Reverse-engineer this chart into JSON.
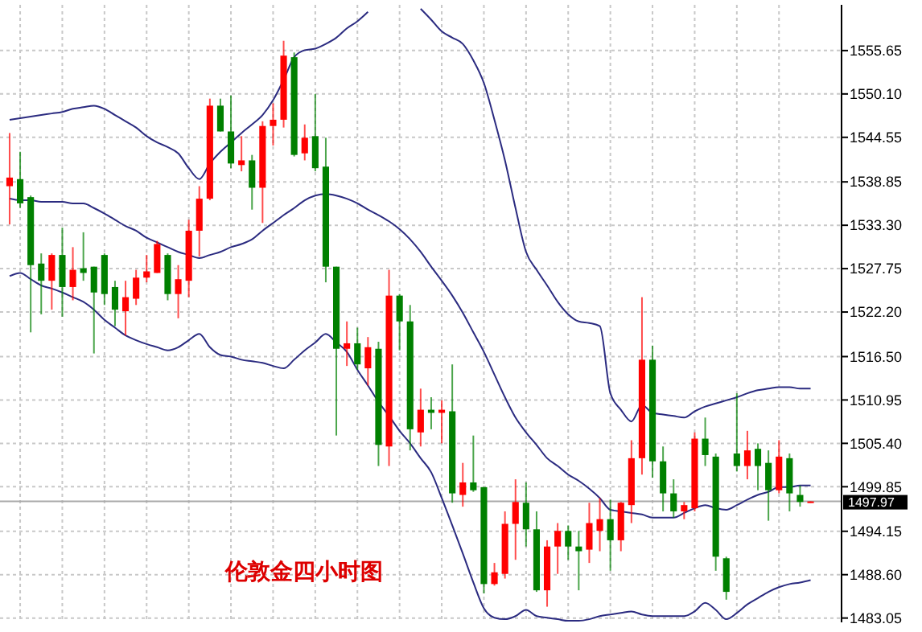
{
  "chart_data": {
    "type": "candlestick",
    "title": "伦敦金四小时图",
    "categories": [
      null,
      null,
      null,
      null,
      null,
      null,
      null,
      null,
      null,
      null,
      null,
      null,
      null,
      null,
      null,
      null,
      null,
      null,
      null,
      null,
      null,
      null,
      null,
      null,
      null,
      null,
      null,
      null,
      null,
      null,
      null,
      null,
      null,
      null,
      null,
      null,
      null,
      null,
      null,
      null,
      null,
      null,
      null,
      null,
      null,
      null,
      null,
      null,
      null,
      null,
      null,
      null,
      null,
      null,
      null,
      null,
      null,
      null,
      null,
      null,
      null,
      null,
      null,
      null,
      null,
      null,
      null,
      null,
      null,
      null,
      null,
      null,
      null,
      null,
      null,
      null,
      null
    ],
    "ohlc": [
      [
        1538.3,
        1545.1,
        1533.4,
        1539.4
      ],
      [
        1539.2,
        1542.7,
        1535.5,
        1536.1
      ],
      [
        1536.9,
        1537.1,
        1519.6,
        1528.2
      ],
      [
        1528.4,
        1529.7,
        1521.9,
        1526.2
      ],
      [
        1526.2,
        1529.7,
        1522.5,
        1529.5
      ],
      [
        1529.5,
        1533.0,
        1521.6,
        1525.4
      ],
      [
        1525.4,
        1530.5,
        1523.7,
        1527.6
      ],
      [
        1527.8,
        1532.4,
        1526.2,
        1527.2
      ],
      [
        1528.0,
        1528.0,
        1516.9,
        1524.7
      ],
      [
        1529.5,
        1529.7,
        1523.1,
        1524.5
      ],
      [
        1525.4,
        1526.2,
        1520.4,
        1522.5
      ],
      [
        1522.3,
        1526.2,
        1519.2,
        1524.1
      ],
      [
        1523.9,
        1527.6,
        1523.1,
        1526.6
      ],
      [
        1526.6,
        1529.5,
        1526.0,
        1527.4
      ],
      [
        1527.2,
        1531.3,
        1527.2,
        1530.9
      ],
      [
        1529.5,
        1529.7,
        1523.7,
        1524.5
      ],
      [
        1524.5,
        1528.2,
        1521.4,
        1526.4
      ],
      [
        1526.2,
        1534.0,
        1524.1,
        1532.6
      ],
      [
        1532.6,
        1538.3,
        1529.3,
        1536.7
      ],
      [
        1536.7,
        1549.5,
        1536.5,
        1548.6
      ],
      [
        1548.6,
        1549.5,
        1545.3,
        1545.3
      ],
      [
        1545.3,
        1549.9,
        1540.6,
        1541.2
      ],
      [
        1541.0,
        1544.7,
        1540.2,
        1541.6
      ],
      [
        1541.6,
        1542.3,
        1535.3,
        1538.1
      ],
      [
        1538.1,
        1546.6,
        1533.6,
        1546.0
      ],
      [
        1546.0,
        1548.9,
        1543.5,
        1546.8
      ],
      [
        1546.8,
        1556.9,
        1545.8,
        1555.0
      ],
      [
        1554.8,
        1555.4,
        1542.1,
        1542.3
      ],
      [
        1542.5,
        1546.2,
        1541.6,
        1544.5
      ],
      [
        1544.7,
        1550.1,
        1540.2,
        1540.6
      ],
      [
        1540.8,
        1544.5,
        1526.0,
        1528.0
      ],
      [
        1528.0,
        1528.0,
        1506.4,
        1517.5
      ],
      [
        1517.5,
        1521.0,
        1515.3,
        1518.2
      ],
      [
        1518.2,
        1520.2,
        1514.8,
        1515.5
      ],
      [
        1515.0,
        1519.0,
        1512.8,
        1517.7
      ],
      [
        1517.5,
        1518.4,
        1502.5,
        1505.2
      ],
      [
        1505.0,
        1527.6,
        1502.5,
        1524.3
      ],
      [
        1524.3,
        1524.5,
        1517.3,
        1521.0
      ],
      [
        1521.0,
        1523.1,
        1504.5,
        1507.2
      ],
      [
        1506.8,
        1512.4,
        1505.0,
        1509.7
      ],
      [
        1509.7,
        1511.3,
        1507.2,
        1509.3
      ],
      [
        1509.3,
        1510.9,
        1505.4,
        1509.7
      ],
      [
        1509.5,
        1515.5,
        1497.8,
        1499.0
      ],
      [
        1498.8,
        1502.9,
        1497.3,
        1500.4
      ],
      [
        1500.4,
        1506.4,
        1499.2,
        1499.4
      ],
      [
        1499.8,
        1499.8,
        1486.2,
        1487.4
      ],
      [
        1487.4,
        1490.1,
        1487.2,
        1488.9
      ],
      [
        1488.7,
        1496.7,
        1488.1,
        1495.1
      ],
      [
        1495.1,
        1500.8,
        1490.5,
        1497.9
      ],
      [
        1497.8,
        1500.4,
        1492.2,
        1494.4
      ],
      [
        1494.4,
        1496.7,
        1486.4,
        1486.6
      ],
      [
        1486.6,
        1493.0,
        1484.5,
        1492.2
      ],
      [
        1492.2,
        1495.2,
        1488.7,
        1494.2
      ],
      [
        1494.2,
        1494.9,
        1490.5,
        1492.2
      ],
      [
        1492.2,
        1494.2,
        1486.6,
        1491.6
      ],
      [
        1491.8,
        1497.8,
        1490.1,
        1495.2
      ],
      [
        1494.2,
        1498.4,
        1491.6,
        1495.7
      ],
      [
        1495.7,
        1498.2,
        1489.1,
        1493.0
      ],
      [
        1493.0,
        1497.9,
        1491.6,
        1497.8
      ],
      [
        1497.5,
        1505.8,
        1495.2,
        1503.5
      ],
      [
        1503.5,
        1524.1,
        1501.4,
        1516.1
      ],
      [
        1516.1,
        1517.9,
        1501.0,
        1503.1
      ],
      [
        1503.1,
        1505.0,
        1496.7,
        1499.0
      ],
      [
        1499.0,
        1500.8,
        1495.9,
        1496.7
      ],
      [
        1496.7,
        1497.9,
        1495.7,
        1497.5
      ],
      [
        1497.1,
        1506.8,
        1496.7,
        1506.0
      ],
      [
        1506.0,
        1508.7,
        1502.5,
        1503.9
      ],
      [
        1503.7,
        1504.1,
        1489.1,
        1490.9
      ],
      [
        1490.7,
        1490.9,
        1485.4,
        1486.4
      ],
      [
        1504.1,
        1511.8,
        1501.8,
        1502.5
      ],
      [
        1502.5,
        1507.0,
        1500.8,
        1504.5
      ],
      [
        1504.7,
        1505.4,
        1499.4,
        1502.5
      ],
      [
        1502.9,
        1504.5,
        1495.5,
        1499.4
      ],
      [
        1499.4,
        1505.8,
        1499.0,
        1503.7
      ],
      [
        1503.5,
        1504.1,
        1496.7,
        1499.0
      ],
      [
        1498.8,
        1500.0,
        1497.3,
        1497.9
      ],
      [
        1497.8,
        1497.97,
        1497.8,
        1497.97
      ]
    ],
    "series": [
      {
        "type": "line",
        "color": "#2b2b80",
        "values": [
          1546.8,
          1547.0,
          1547.2,
          1547.4,
          1547.6,
          1547.8,
          1548.2,
          1548.4,
          1548.6,
          1548.2,
          1547.4,
          1546.6,
          1545.8,
          1544.7,
          1543.9,
          1543.3,
          1542.5,
          1540.6,
          1539.2,
          1541.2,
          1542.7,
          1543.9,
          1545.1,
          1546.2,
          1547.4,
          1549.3,
          1551.9,
          1554.8,
          1555.7,
          1555.9,
          1556.5,
          1557.3,
          1558.5,
          1559.4,
          1560.6,
          null,
          null,
          null,
          null,
          1561.0,
          1559.6,
          1558.1,
          1557.3,
          1556.5,
          1554.4,
          1551.5,
          1546.8,
          1541.6,
          1535.5,
          1529.9,
          1527.6,
          1525.6,
          1523.5,
          1521.9,
          1521.0,
          1520.8,
          1520.4,
          1511.8,
          1509.7,
          1508.2,
          1510.3,
          1509.3,
          1509.1,
          1508.9,
          1508.7,
          1509.5,
          1510.1,
          1510.5,
          1510.9,
          1511.3,
          1511.8,
          1512.2,
          1512.4,
          1512.6,
          1512.6,
          1512.4,
          1512.4
        ]
      },
      {
        "type": "line",
        "color": "#2b2b80",
        "values": [
          1536.7,
          1536.5,
          1536.5,
          1536.3,
          1536.3,
          1536.3,
          1536.1,
          1536.1,
          1535.5,
          1534.8,
          1534.0,
          1533.2,
          1532.6,
          1531.7,
          1531.1,
          1530.5,
          1529.9,
          1529.5,
          1529.1,
          1529.5,
          1529.9,
          1530.5,
          1530.9,
          1531.5,
          1532.6,
          1533.6,
          1534.6,
          1535.5,
          1536.5,
          1537.1,
          1537.3,
          1537.1,
          1536.7,
          1536.1,
          1535.3,
          1534.6,
          1533.8,
          1532.8,
          1531.5,
          1529.9,
          1528.0,
          1526.2,
          1524.3,
          1522.1,
          1519.6,
          1517.1,
          1514.2,
          1511.3,
          1508.7,
          1506.8,
          1505.2,
          1503.5,
          1502.5,
          1501.4,
          1500.6,
          1499.6,
          1498.4,
          1496.9,
          1496.7,
          1496.5,
          1496.3,
          1495.9,
          1495.9,
          1495.9,
          1496.5,
          1497.1,
          1497.5,
          1497.1,
          1496.9,
          1497.5,
          1498.2,
          1498.8,
          1499.2,
          1499.8,
          1499.8,
          1500.0,
          1500.0
        ]
      },
      {
        "type": "line",
        "color": "#2b2b80",
        "values": [
          1526.8,
          1527.2,
          1526.4,
          1525.6,
          1525.2,
          1524.7,
          1524.1,
          1523.5,
          1522.5,
          1521.2,
          1520.2,
          1519.2,
          1518.6,
          1518.1,
          1517.7,
          1517.3,
          1517.7,
          1518.6,
          1519.4,
          1517.7,
          1516.7,
          1516.5,
          1516.1,
          1515.9,
          1515.7,
          1515.3,
          1515.0,
          1516.1,
          1517.3,
          1518.3,
          1519.4,
          1518.3,
          1517.1,
          1514.8,
          1512.8,
          1510.7,
          1508.9,
          1507.0,
          1505.4,
          1503.5,
          1501.7,
          1498.4,
          1494.9,
          1491.3,
          1487.6,
          1484.3,
          1483.1,
          1482.9,
          1483.3,
          1484.1,
          1483.3,
          1483.1,
          1482.9,
          1482.7,
          1482.7,
          1482.9,
          1483.3,
          1483.5,
          1483.7,
          1483.9,
          1483.5,
          1483.3,
          1483.3,
          1483.3,
          1483.3,
          1483.9,
          1485.0,
          1484.1,
          1482.9,
          1483.7,
          1484.8,
          1485.6,
          1486.4,
          1487.0,
          1487.4,
          1487.6,
          1487.9
        ]
      }
    ],
    "ylim": [
      1482.5,
      1561.5
    ],
    "yticks": [
      1555.65,
      {
        "value": 1550.1,
        "label": "1550.10"
      },
      1544.55,
      1538.85,
      {
        "value": 1533.3,
        "label": "1533.30"
      },
      1527.75,
      {
        "value": 1522.2,
        "label": "1522.20"
      },
      {
        "value": 1516.5,
        "label": "1516.50"
      },
      1510.95,
      {
        "value": 1505.4,
        "label": "1505.40"
      },
      1499.85,
      1494.15,
      {
        "value": 1488.6,
        "label": "1488.60"
      },
      1483.05
    ],
    "grid": true,
    "ref_lines": [
      {
        "axis": "y",
        "value": 1497.97,
        "label": "1497.97",
        "color": "#a9a9a9"
      }
    ]
  }
}
